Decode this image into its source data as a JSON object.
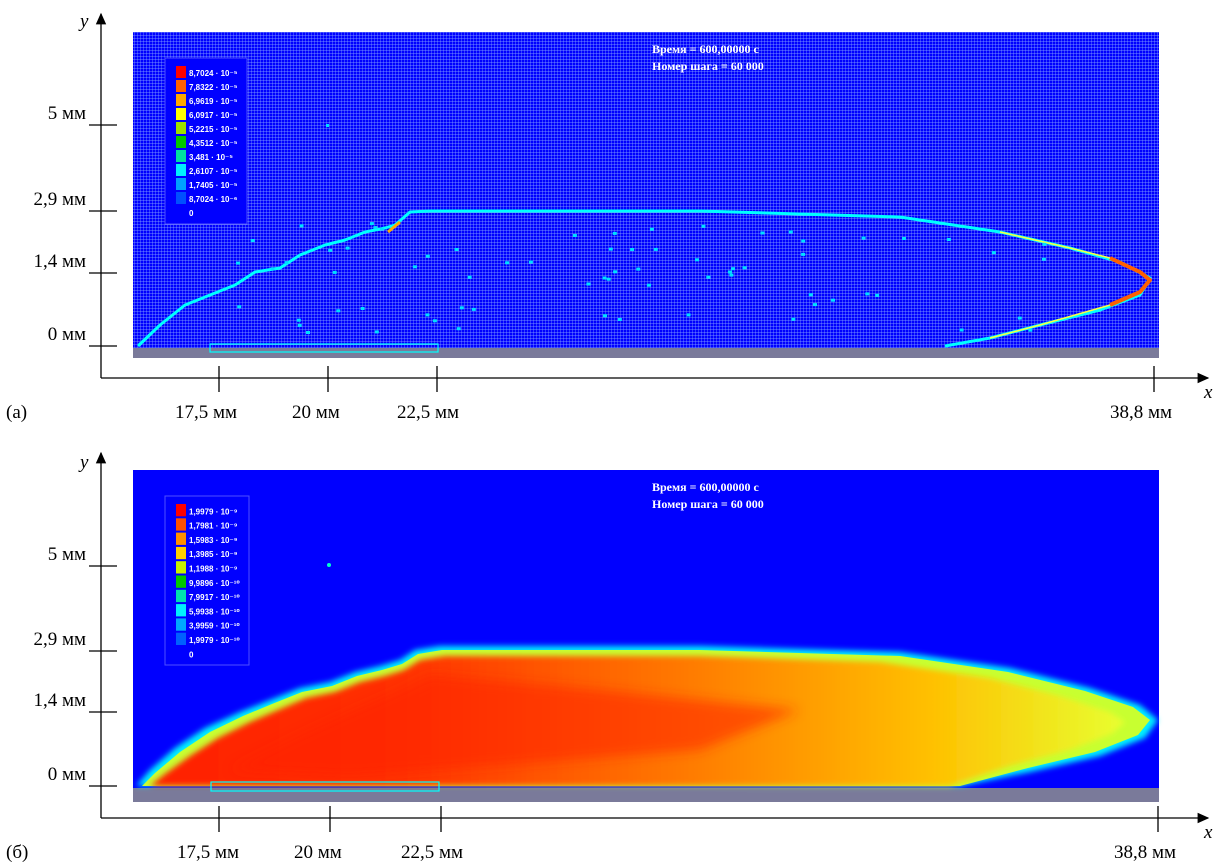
{
  "axes": {
    "x_name": "x",
    "y_name": "y"
  },
  "y_ticks": [
    "5 мм",
    "2,9 мм",
    "1,4 мм",
    "0 мм"
  ],
  "x_ticks": [
    "17,5 мм",
    "20 мм",
    "22,5 мм",
    "38,8 мм"
  ],
  "panels": [
    {
      "id": "a",
      "panel_label": "(а)",
      "time_text": "Время = 600,00000 с",
      "step_text": "Номер шага = 60 000",
      "legend_title": "",
      "legend": [
        {
          "label": "8,7024 · 10⁻⁵",
          "color": "#ff0000"
        },
        {
          "label": "7,8322 · 10⁻⁵",
          "color": "#ff6000"
        },
        {
          "label": "6,9619 · 10⁻⁵",
          "color": "#ffa800"
        },
        {
          "label": "6,0917 · 10⁻⁵",
          "color": "#ffff00"
        },
        {
          "label": "5,2215 · 10⁻⁵",
          "color": "#9ee000"
        },
        {
          "label": "4,3512 · 10⁻⁵",
          "color": "#00c800"
        },
        {
          "label": "3,481 · 10⁻⁵",
          "color": "#00e0a0"
        },
        {
          "label": "2,6107 · 10⁻⁵",
          "color": "#00f0ff"
        },
        {
          "label": "1,7405 · 10⁻⁵",
          "color": "#00a0ff"
        },
        {
          "label": "8,7024 · 10⁻⁶",
          "color": "#0050ff"
        },
        {
          "label": "0",
          "color": "#0000ff"
        }
      ]
    },
    {
      "id": "b",
      "panel_label": "(б)",
      "time_text": "Время = 600,00000 с",
      "step_text": "Номер шага = 60 000",
      "legend_title": "",
      "legend": [
        {
          "label": "1,9979 · 10⁻⁹",
          "color": "#ff0000"
        },
        {
          "label": "1,7981 · 10⁻⁹",
          "color": "#ff5000"
        },
        {
          "label": "1,5983 · 10⁻⁹",
          "color": "#ff9000"
        },
        {
          "label": "1,3985 · 10⁻⁹",
          "color": "#ffd000"
        },
        {
          "label": "1,1988 · 10⁻⁹",
          "color": "#c8f000"
        },
        {
          "label": "9,9896 · 10⁻¹⁰",
          "color": "#00c800"
        },
        {
          "label": "7,9917 · 10⁻¹⁰",
          "color": "#00e0b0"
        },
        {
          "label": "5,9938 · 10⁻¹⁰",
          "color": "#00f0ff"
        },
        {
          "label": "3,9959 · 10⁻¹⁰",
          "color": "#00a8ff"
        },
        {
          "label": "1,9979 · 10⁻¹⁰",
          "color": "#0060ff"
        },
        {
          "label": "0",
          "color": "#0000ff"
        }
      ]
    }
  ],
  "colors": {
    "background": "#0000ff",
    "ground": "#7a7a9a",
    "contour": "#00ffff",
    "plume_core": "#ff2000",
    "plume_mid": "#ffa000",
    "plume_edge": "#ffff40"
  }
}
